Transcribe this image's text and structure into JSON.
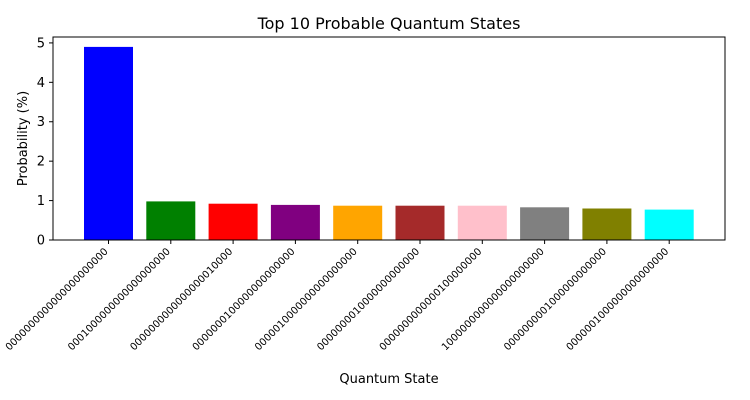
{
  "chart_data": {
    "type": "bar",
    "title": "Top 10 Probable Quantum States",
    "xlabel": "Quantum State",
    "ylabel": "Probability (%)",
    "ylim": [
      0,
      5.15
    ],
    "yticks": [
      "0",
      "1",
      "2",
      "3",
      "4",
      "5"
    ],
    "grid": false,
    "categories": [
      "0000000000000000000000",
      "0001000000000000000000",
      "0000000000000000010000",
      "0000000100000000000000",
      "0000010000000000000000",
      "0000000010000000000000",
      "0000000000000100000000",
      "1000000000000000000000",
      "0000000001000000000000",
      "0000001000000000000000"
    ],
    "values": [
      4.9,
      0.98,
      0.92,
      0.89,
      0.87,
      0.87,
      0.87,
      0.83,
      0.8,
      0.77
    ],
    "colors": [
      "#0000ff",
      "#008000",
      "#ff0000",
      "#800080",
      "#ffa500",
      "#a52a2a",
      "#ffc0cb",
      "#808080",
      "#808000",
      "#00ffff"
    ]
  }
}
